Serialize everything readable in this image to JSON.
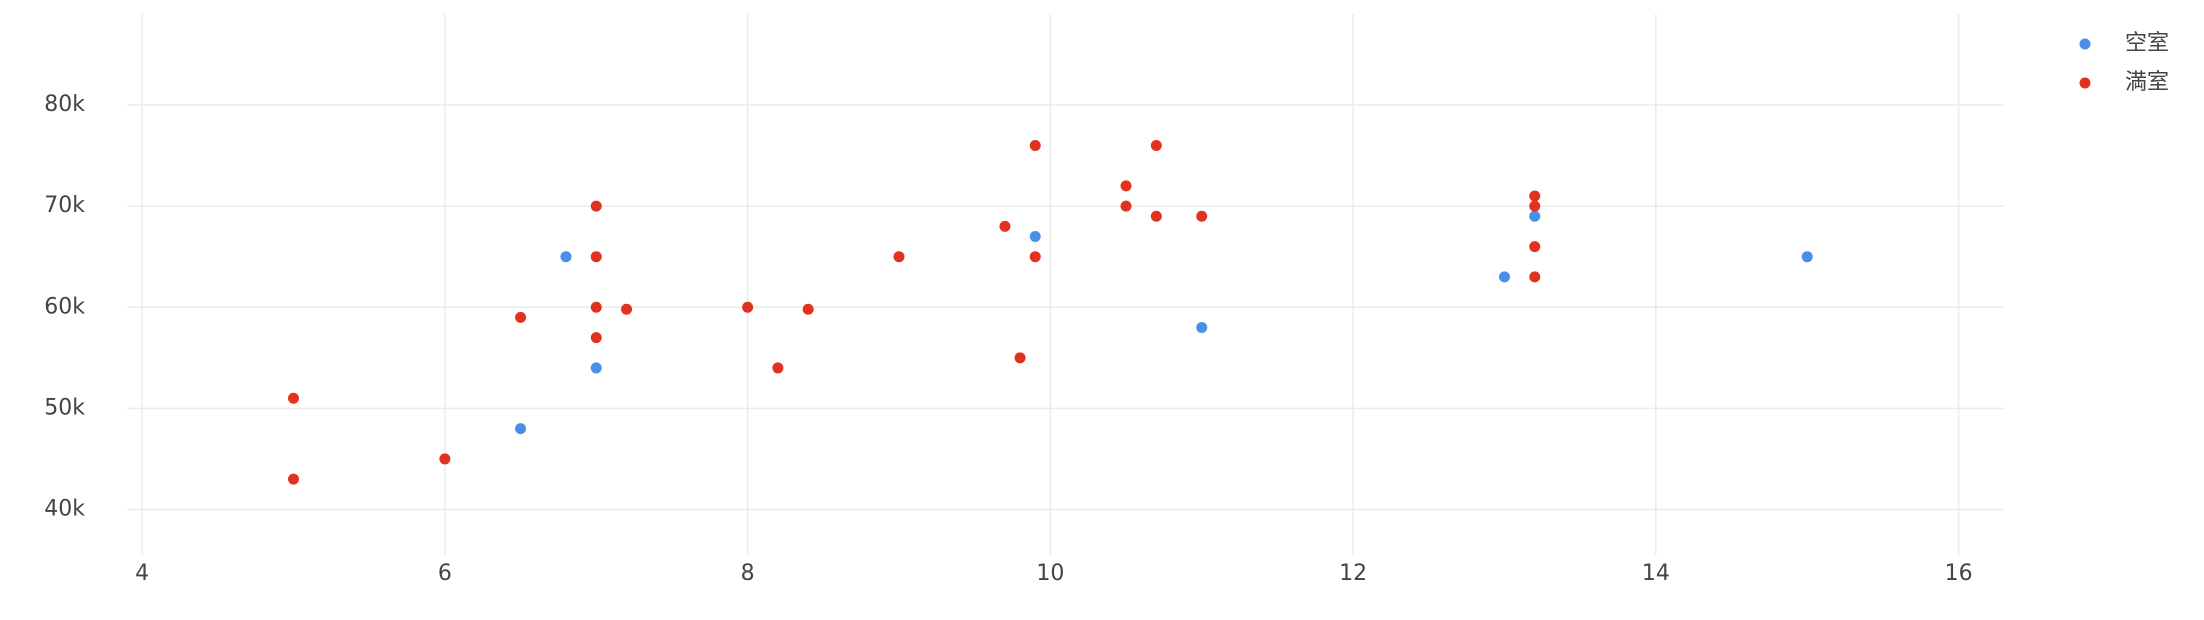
{
  "chart_data": {
    "type": "scatter",
    "series": [
      {
        "name": "空室",
        "color": "#4a8fe7",
        "x": [
          6.8,
          7,
          6.5,
          9.9,
          11,
          13,
          13.2,
          15
        ],
        "values": [
          65000,
          54000,
          48000,
          67000,
          58000,
          63000,
          69000,
          65000
        ]
      },
      {
        "name": "満室",
        "color": "#e0321f",
        "x": [
          5,
          5,
          6,
          6.5,
          7,
          7,
          7,
          7,
          7.2,
          8,
          8.2,
          8.4,
          9,
          9.7,
          9.8,
          9.9,
          9.9,
          10.5,
          10.5,
          10.7,
          10.7,
          11,
          13.2,
          13.2,
          13.2,
          13.2
        ],
        "values": [
          51000,
          43000,
          45000,
          59000,
          70000,
          65000,
          60000,
          57000,
          59800,
          60000,
          54000,
          59800,
          65000,
          68000,
          55000,
          76000,
          65000,
          72000,
          70000,
          76000,
          69000,
          69000,
          71000,
          70000,
          66000,
          63000
        ]
      }
    ],
    "xlim": [
      3.9,
      16.3
    ],
    "xticks": [
      4,
      6,
      8,
      10,
      12,
      14,
      16
    ],
    "ylim": [
      35500,
      89000
    ],
    "yticks": [
      {
        "value": 40000,
        "label": "40k"
      },
      {
        "value": 50000,
        "label": "50k"
      },
      {
        "value": 60000,
        "label": "60k"
      },
      {
        "value": 70000,
        "label": "70k"
      },
      {
        "value": 80000,
        "label": "80k"
      }
    ],
    "grid": true,
    "legend": "right"
  }
}
